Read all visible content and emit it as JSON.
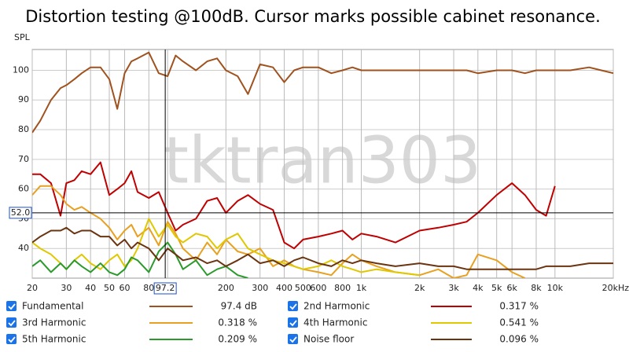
{
  "chart_data": {
    "type": "line",
    "title": "Distortion testing @100dB. Cursor marks possible cabinet resonance.",
    "y_label": "SPL",
    "watermark": "tktran303",
    "log_x": true,
    "grid": true,
    "xlim": [
      20,
      20000
    ],
    "ylim": [
      30,
      107
    ],
    "xticks": [
      20,
      30,
      40,
      50,
      60,
      80,
      100,
      200,
      300,
      400,
      500,
      600,
      800,
      {
        "value": 1000,
        "label": "1k"
      },
      {
        "value": 2000,
        "label": "2k"
      },
      {
        "value": 3000,
        "label": "3k"
      },
      {
        "value": 4000,
        "label": "4k"
      },
      {
        "value": 5000,
        "label": "5k"
      },
      {
        "value": 6000,
        "label": "6k"
      },
      {
        "value": 8000,
        "label": "8k"
      },
      {
        "value": 10000,
        "label": "10k"
      },
      {
        "value": 20000,
        "label": "20kHz"
      }
    ],
    "yticks": [
      40,
      50,
      60,
      70,
      80,
      90,
      100
    ],
    "cursor": {
      "x": 97.2,
      "y": {
        "value": 52,
        "label": "52.0"
      }
    },
    "x": [
      20,
      22,
      25,
      28,
      30,
      33,
      36,
      40,
      45,
      50,
      55,
      60,
      65,
      70,
      80,
      90,
      100,
      110,
      120,
      140,
      160,
      180,
      200,
      230,
      260,
      300,
      350,
      400,
      450,
      500,
      600,
      700,
      800,
      900,
      1000,
      1200,
      1500,
      2000,
      2500,
      3000,
      3500,
      4000,
      5000,
      6000,
      7000,
      8000,
      9000,
      10000,
      12000,
      15000,
      20000
    ],
    "series": [
      {
        "name": "Fundamental",
        "color": "#a0521e",
        "reading": {
          "value": 97.4,
          "label": "97.4 dB"
        },
        "values": [
          79,
          83,
          90,
          94,
          95,
          97,
          99,
          101,
          101,
          97,
          87,
          99,
          103,
          104,
          106,
          99,
          98,
          105,
          103,
          100,
          103,
          104,
          100,
          98,
          92,
          102,
          101,
          96,
          100,
          101,
          101,
          99,
          100,
          101,
          100,
          100,
          100,
          100,
          100,
          100,
          100,
          99,
          100,
          100,
          99,
          100,
          100,
          100,
          100,
          101,
          99
        ]
      },
      {
        "name": "2nd Harmonic",
        "color": "#c00000",
        "reading": {
          "value": 0.317,
          "label": "0.317 %"
        },
        "values": [
          65,
          65,
          62,
          51,
          62,
          63,
          66,
          65,
          69,
          58,
          60,
          62,
          66,
          59,
          57,
          59,
          52,
          46,
          48,
          50,
          56,
          57,
          52,
          56,
          58,
          55,
          53,
          42,
          40,
          43,
          44,
          45,
          46,
          43,
          45,
          44,
          42,
          46,
          47,
          48,
          49,
          52,
          58,
          62,
          58,
          53,
          51,
          61,
          null,
          null,
          null
        ]
      },
      {
        "name": "3rd Harmonic",
        "color": "#e8a020",
        "reading": {
          "value": 0.318,
          "label": "0.318 %"
        },
        "values": [
          58,
          61,
          61,
          58,
          55,
          53,
          54,
          52,
          50,
          47,
          43,
          46,
          48,
          44,
          47,
          41,
          49,
          45,
          40,
          36,
          42,
          38,
          43,
          39,
          38,
          40,
          34,
          36,
          34,
          33,
          32,
          31,
          35,
          38,
          36,
          34,
          32,
          31,
          33,
          30,
          31,
          38,
          36,
          32,
          30,
          null,
          null,
          null,
          null,
          null,
          null
        ]
      },
      {
        "name": "4th Harmonic",
        "color": "#e0c800",
        "reading": {
          "value": 0.541,
          "label": "0.541 %"
        },
        "values": [
          42,
          40,
          38,
          35,
          33,
          36,
          38,
          35,
          33,
          36,
          38,
          34,
          36,
          40,
          50,
          44,
          48,
          44,
          42,
          45,
          44,
          40,
          43,
          45,
          40,
          38,
          36,
          35,
          34,
          33,
          34,
          36,
          34,
          33,
          32,
          33,
          32,
          31,
          null,
          null,
          null,
          null,
          null,
          null,
          null,
          null,
          null,
          null,
          null,
          null,
          null
        ]
      },
      {
        "name": "5th Harmonic",
        "color": "#2a9a2a",
        "reading": {
          "value": 0.209,
          "label": "0.209 %"
        },
        "values": [
          34,
          36,
          32,
          35,
          33,
          36,
          34,
          32,
          35,
          32,
          31,
          33,
          37,
          36,
          32,
          39,
          42,
          38,
          33,
          36,
          31,
          33,
          34,
          31,
          30,
          null,
          null,
          null,
          null,
          null,
          null,
          null,
          null,
          null,
          null,
          null,
          null,
          null,
          null,
          null,
          null,
          null,
          null,
          null,
          null,
          null,
          null,
          null,
          null,
          null,
          null
        ]
      },
      {
        "name": "Noise floor",
        "color": "#6b3410",
        "reading": {
          "value": 0.096,
          "label": "0.096 %"
        },
        "values": [
          42,
          44,
          46,
          46,
          47,
          45,
          46,
          46,
          44,
          44,
          41,
          43,
          40,
          42,
          40,
          36,
          40,
          38,
          36,
          37,
          35,
          36,
          34,
          36,
          38,
          35,
          36,
          34,
          36,
          37,
          35,
          34,
          36,
          35,
          36,
          35,
          34,
          35,
          34,
          34,
          33,
          33,
          33,
          33,
          33,
          33,
          34,
          34,
          34,
          35,
          35
        ]
      }
    ]
  }
}
